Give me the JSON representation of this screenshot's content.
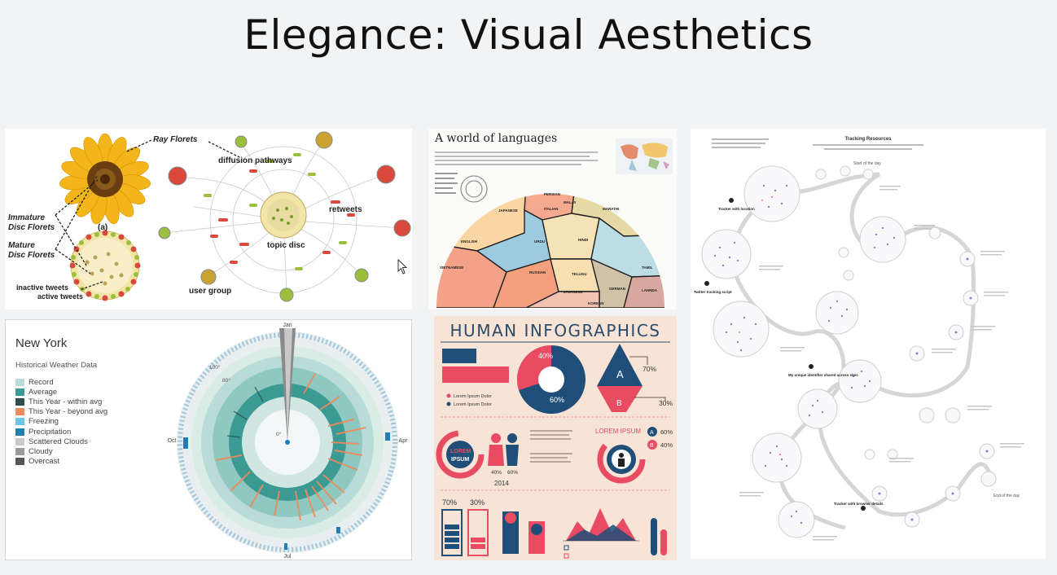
{
  "slide": {
    "title": "Elegance: Visual Aesthetics"
  },
  "flower": {
    "ray_florets": "Ray Florets",
    "immature_1": "Immature",
    "immature_2": "Disc Florets",
    "mature_1": "Mature",
    "mature_2": "Disc Florets",
    "panel_a": "(a)",
    "inactive": "inactive tweets",
    "active": "active tweets",
    "diffusion": "diffusion pathways",
    "retweets": "retweets",
    "topic_disc": "topic disc",
    "user_group": "user group"
  },
  "languages": {
    "title": "A world of languages",
    "regions": [
      "JAPANESE",
      "PERSIAN",
      "MALAY",
      "ITALIAN",
      "MARATHI",
      "ENGLISH",
      "URDU",
      "HINDI",
      "VIETNAMESE",
      "RUSSIAN",
      "TELUGU",
      "TAMIL",
      "KOREAN",
      "JAVANESE",
      "GERMAN",
      "LAHNDA"
    ]
  },
  "new_york": {
    "title": "New York",
    "subtitle": "Historical Weather Data",
    "legend": [
      {
        "label": "Record",
        "color": "#b9dcd8"
      },
      {
        "label": "Average",
        "color": "#3b9a93"
      },
      {
        "label": "This Year - within avg",
        "color": "#2d4d4d"
      },
      {
        "label": "This Year - beyond avg",
        "color": "#ef8a5a"
      },
      {
        "label": "Freezing",
        "color": "#6cc5e8"
      },
      {
        "label": "Precipitation",
        "color": "#1f7fb5"
      },
      {
        "label": "Scattered Clouds",
        "color": "#c9c9c9"
      },
      {
        "label": "Cloudy",
        "color": "#9b9b9b"
      },
      {
        "label": "Overcast",
        "color": "#555555"
      }
    ],
    "month_jan": "Jan",
    "month_apr": "Apr",
    "month_jul": "Jul",
    "month_oct": "Oct",
    "tick_100": "100°",
    "tick_80": "80°",
    "tick_0": "0°"
  },
  "infographic": {
    "title": "HUMAN INFOGRAPHICS",
    "pie_40": "40%",
    "pie_60": "60%",
    "tri_70": "70%",
    "tri_30": "30%",
    "tri_a": "A",
    "tri_b": "B",
    "lorem": "LOREM",
    "ipsum": "IPSUM",
    "lorem_ipsum": "LOREM IPSUM",
    "year": "2014",
    "pct_40a": "40%",
    "pct_60a": "60%",
    "pct_60b": "60%",
    "pct_40b": "40%",
    "bat_70": "70%",
    "bat_30": "30%",
    "legend_1": "Lorem Ipsum Dolor",
    "legend_2": "Lorem Ipsum Dolor"
  },
  "tracking": {
    "title": "Tracking Resources",
    "start": "Start of the day",
    "end": "End of the day",
    "note_1": "Tracker with location",
    "note_2": "Twitter tracking script",
    "note_3": "My unique identifier shared across sites",
    "note_4": "Tracker with browser details"
  },
  "colors": {
    "teal": "#3b9a93",
    "orange": "#ef8a5a",
    "navy": "#1f4e79",
    "pink": "#e94b63",
    "purple": "#5b5bb5"
  }
}
